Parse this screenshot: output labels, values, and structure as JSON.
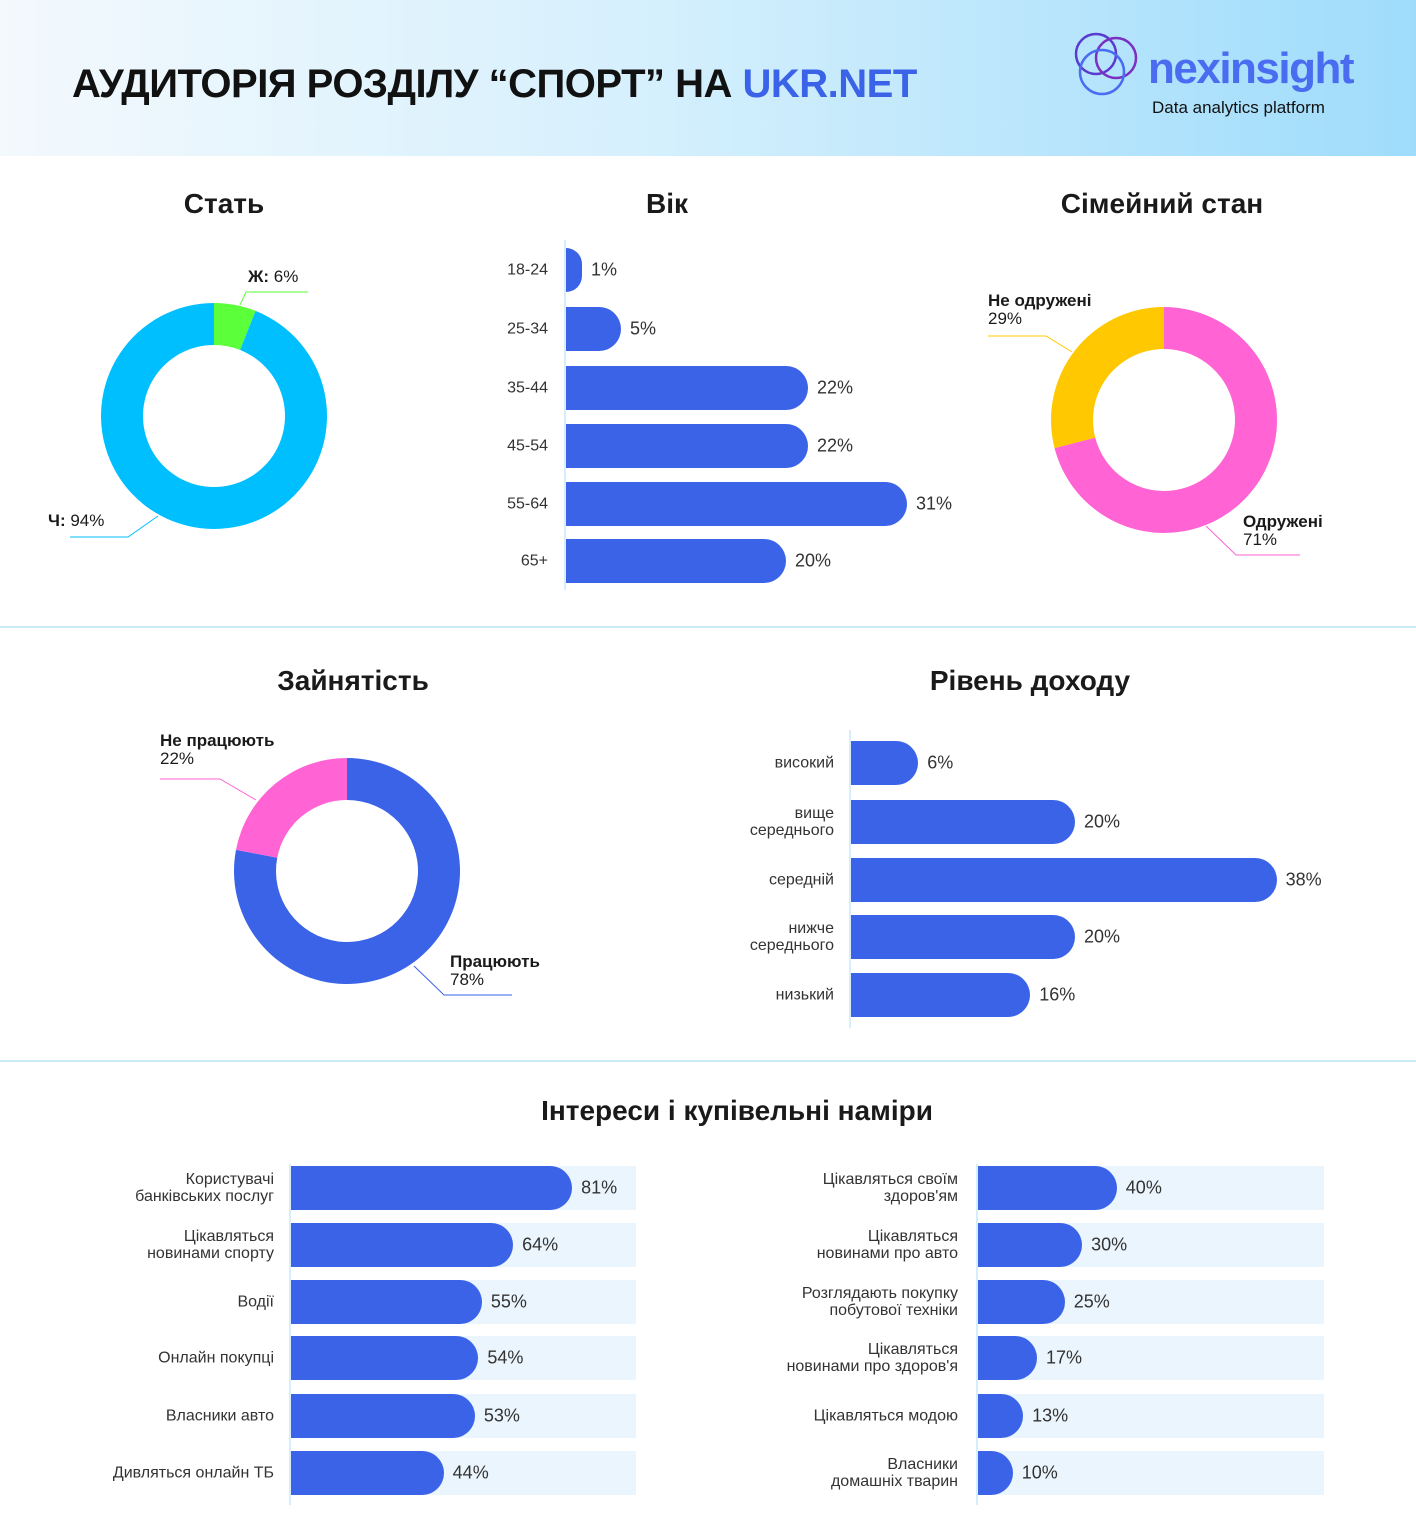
{
  "header": {
    "title_main": "АУДИТОРІЯ РОЗДІЛУ “СПОРТ” НА ",
    "title_accent": "UKR.NET",
    "logo_name": "nexinsight",
    "logo_tagline": "Data analytics platform"
  },
  "colors": {
    "blue": "#3a63e8",
    "cyan": "#00bfff",
    "green": "#5bff3a",
    "pink": "#ff63d4",
    "yellow": "#ffc800",
    "track": "#eaf5fd"
  },
  "chart_data": [
    {
      "id": "gender",
      "type": "pie",
      "title": "Стать",
      "slices": [
        {
          "label": "Ж:",
          "value": 6,
          "display": "6%",
          "color": "#5bff3a"
        },
        {
          "label": "Ч:",
          "value": 94,
          "display": "94%",
          "color": "#00bfff"
        }
      ]
    },
    {
      "id": "age",
      "type": "bar",
      "title": "Вік",
      "categories": [
        "18-24",
        "25-34",
        "35-44",
        "45-54",
        "55-64",
        "65+"
      ],
      "values": [
        1,
        5,
        22,
        22,
        31,
        20
      ],
      "labels": [
        "1%",
        "5%",
        "22%",
        "22%",
        "31%",
        "20%"
      ]
    },
    {
      "id": "marital",
      "type": "pie",
      "title": "Сімейний стан",
      "slices": [
        {
          "label": "Одружені",
          "value": 71,
          "display": "71%",
          "color": "#ff63d4"
        },
        {
          "label": "Не одружені",
          "value": 29,
          "display": "29%",
          "color": "#ffc800"
        }
      ]
    },
    {
      "id": "employment",
      "type": "pie",
      "title": "Зайнятість",
      "slices": [
        {
          "label": "Працюють",
          "value": 78,
          "display": "78%",
          "color": "#3a63e8"
        },
        {
          "label": "Не працюють",
          "value": 22,
          "display": "22%",
          "color": "#ff63d4"
        }
      ]
    },
    {
      "id": "income",
      "type": "bar",
      "title": "Рівень доходу",
      "categories": [
        "високий",
        "вище\nсереднього",
        "середній",
        "нижче\nсереднього",
        "низький"
      ],
      "values": [
        6,
        20,
        38,
        20,
        16
      ],
      "labels": [
        "6%",
        "20%",
        "38%",
        "20%",
        "16%"
      ]
    },
    {
      "id": "interests_left",
      "type": "bar",
      "title": "Інтереси і купівельні наміри",
      "categories": [
        "Користувачі\nбанківських послуг",
        "Цікавляться\nновинами спорту",
        "Водії",
        "Онлайн покупці",
        "Власники авто",
        "Дивляться онлайн ТБ"
      ],
      "values": [
        81,
        64,
        55,
        54,
        53,
        44
      ],
      "labels": [
        "81%",
        "64%",
        "55%",
        "54%",
        "53%",
        "44%"
      ],
      "xlim": [
        0,
        100
      ]
    },
    {
      "id": "interests_right",
      "type": "bar",
      "categories": [
        "Цікавляться своїм\nздоров'ям",
        "Цікавляться\nновинами про авто",
        "Розглядають покупку\nпобутової техніки",
        "Цікавляться\nновинами про здоров'я",
        "Цікавляться модою",
        "Власники\nдомашніх тварин"
      ],
      "values": [
        40,
        30,
        25,
        17,
        13,
        10
      ],
      "labels": [
        "40%",
        "30%",
        "25%",
        "17%",
        "13%",
        "10%"
      ],
      "xlim": [
        0,
        100
      ]
    }
  ]
}
